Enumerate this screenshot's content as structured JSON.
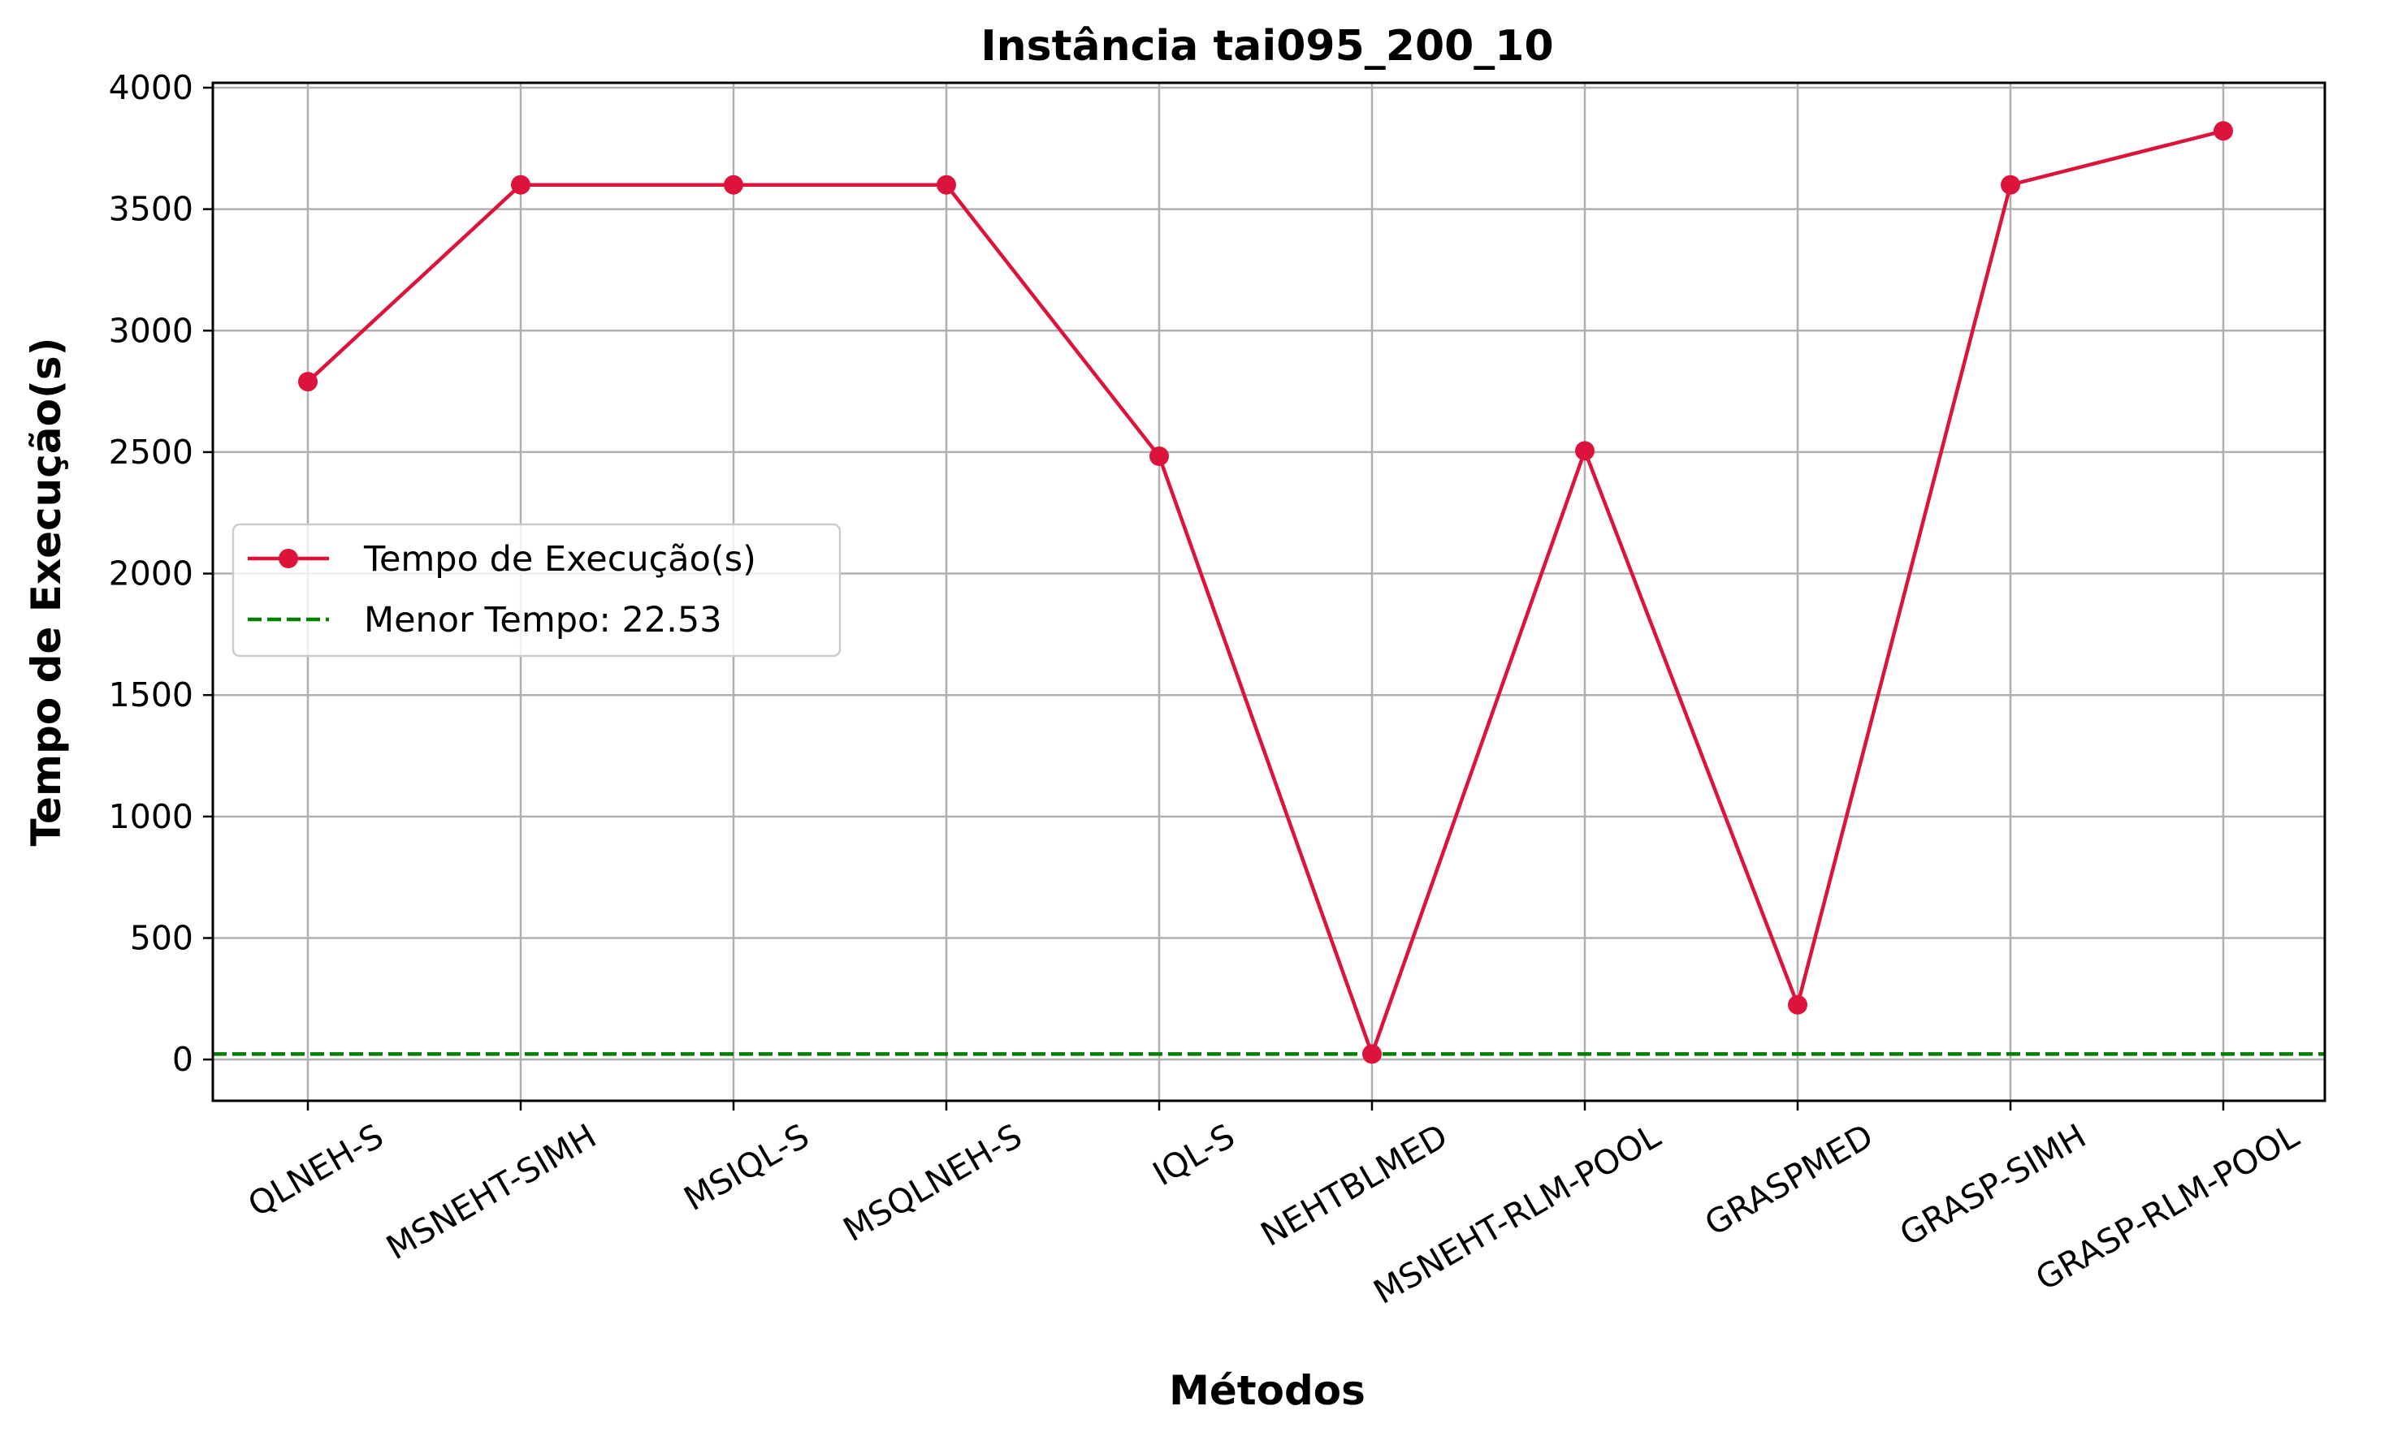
{
  "chart_data": {
    "type": "line",
    "title": "Instância tai095_200_10",
    "xlabel": "Métodos",
    "ylabel": "Tempo de Execução(s)",
    "categories": [
      "QLNEH-S",
      "MSNEHT-SIMH",
      "MSIQL-S",
      "MSQLNEH-S",
      "IQL-S",
      "NEHTBLMED",
      "MSNEHT-RLM-POOL",
      "GRASPMED",
      "GRASP-SIMH",
      "GRASP-RLM-POOL"
    ],
    "series": [
      {
        "name": "Tempo de Execução(s)",
        "color": "#dc143c",
        "marker": "circle",
        "values": [
          2790,
          3600,
          3600,
          3600,
          2483,
          22.53,
          2505,
          225,
          3600,
          3822
        ]
      }
    ],
    "reference_line": {
      "name": "Menor Tempo: 22.53",
      "value": 22.53,
      "color": "#008000",
      "style": "dashed"
    },
    "ylim": [
      -170,
      4020
    ],
    "yticks": [
      0,
      500,
      1000,
      1500,
      2000,
      2500,
      3000,
      3500,
      4000
    ],
    "grid": true,
    "legend_position": "center-left"
  }
}
